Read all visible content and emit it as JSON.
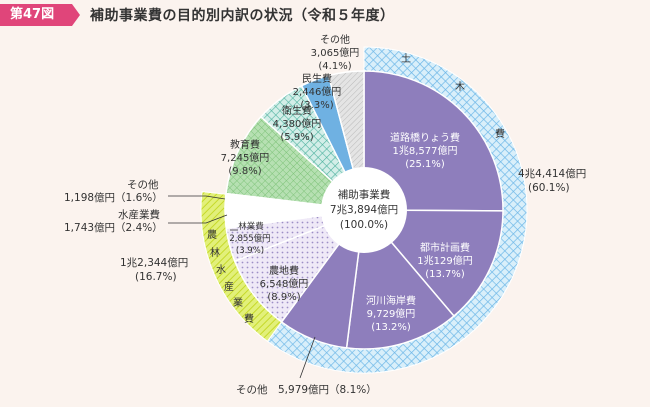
{
  "header": {
    "badge": "第47図",
    "title": "補助事業費の目的別内訳の状況（令和５年度）"
  },
  "colors": {
    "background": "#fbf3ee",
    "badge": "#e0457a",
    "doro": "#8e7ebc",
    "toshi": "#8e7ebc",
    "kasen": "#8e7ebc",
    "other_doboku": "#8e7ebc",
    "nochi": "#e3dcf0",
    "rinya": "#e3dcf0",
    "suisan": "#ffffff",
    "other_norin": "#ffffff",
    "kyoiku": "#a7d9a4",
    "eisei": "#c5e8df",
    "minsei": "#6fb1e2",
    "other": "#d8d8d8",
    "outer_doboku": "#bfe1f5",
    "outer_norin": "#d8ec4a"
  },
  "chart_data": {
    "type": "pie",
    "title": "補助事業費の目的別内訳の状況（令和５年度）",
    "center_label": {
      "line1": "補助事業費",
      "line2": "7兆3,894億円",
      "line3": "(100.0%)"
    },
    "inner": [
      {
        "key": "doro",
        "name": "道路橋りょう費",
        "amount": "1兆8,577億円",
        "pct": "(25.1%)",
        "value": 25.1
      },
      {
        "key": "toshi",
        "name": "都市計画費",
        "amount": "1兆129億円",
        "pct": "(13.7%)",
        "value": 13.7
      },
      {
        "key": "kasen",
        "name": "河川海岸費",
        "amount": "9,729億円",
        "pct": "(13.2%)",
        "value": 13.2
      },
      {
        "key": "other_doboku",
        "name": "その他",
        "amount": "5,979億円",
        "pct": "(8.1%)",
        "value": 8.1
      },
      {
        "key": "nochi",
        "name": "農地費",
        "amount": "6,548億円",
        "pct": "(8.9%)",
        "value": 8.9
      },
      {
        "key": "rinya",
        "name": "林業費",
        "amount": "2,855億円",
        "pct": "(3.9%)",
        "value": 3.9
      },
      {
        "key": "suisan",
        "name": "水産業費",
        "amount": "1,743億円",
        "pct": "(2.4%)",
        "value": 2.4
      },
      {
        "key": "other_norin",
        "name": "その他",
        "amount": "1,198億円",
        "pct": "(1.6%)",
        "value": 1.6
      },
      {
        "key": "kyoiku",
        "name": "教育費",
        "amount": "7,245億円",
        "pct": "(9.8%)",
        "value": 9.8
      },
      {
        "key": "eisei",
        "name": "衛生費",
        "amount": "4,380億円",
        "pct": "(5.9%)",
        "value": 5.9
      },
      {
        "key": "minsei",
        "name": "民生費",
        "amount": "2,446億円",
        "pct": "(3.3%)",
        "value": 3.3
      },
      {
        "key": "other",
        "name": "その他",
        "amount": "3,065億円",
        "pct": "(4.1%)",
        "value": 4.1
      }
    ],
    "outer": [
      {
        "key": "outer_doboku",
        "name_chars": [
          "土",
          "木",
          "費"
        ],
        "amount": "4兆4,414億円",
        "pct": "(60.1%)",
        "value": 60.1
      },
      {
        "key": "outer_norin",
        "name_chars": [
          "農",
          "林",
          "水",
          "産",
          "業",
          "費"
        ],
        "amount": "1兆2,344億円",
        "pct": "(16.7%)",
        "value": 16.7
      }
    ],
    "external_labels": {
      "other_doboku": "その他　5,979億円（8.1%）",
      "other_norin_1": "その他",
      "other_norin_2": "1,198億円（1.6%）",
      "suisan_1": "水産業費",
      "suisan_2": "1,743億円（2.4%）",
      "norin_1": "1兆2,344億円",
      "norin_2": "(16.7%)",
      "doboku": "4兆4,414億円",
      "doboku_pct": "(60.1%)"
    }
  }
}
